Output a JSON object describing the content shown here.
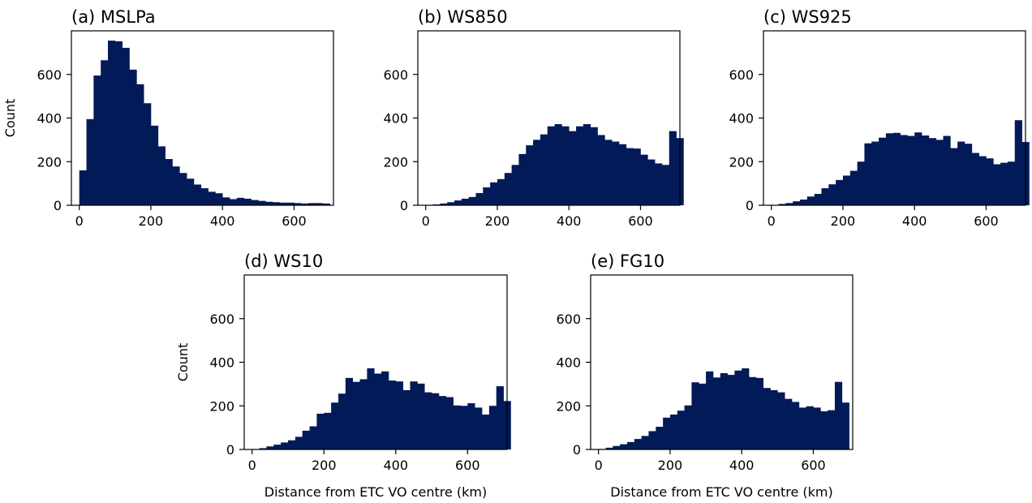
{
  "chart_data": [
    {
      "type": "bar",
      "title": "(a) MSLPa",
      "xlabel": "",
      "ylabel": "Count",
      "xlim": [
        -22,
        710
      ],
      "ylim": [
        0,
        800
      ],
      "xticks": [
        0,
        200,
        400,
        600
      ],
      "yticks": [
        0,
        200,
        400,
        600
      ],
      "grid": false,
      "bin_width": 20,
      "bin_start": 0,
      "color": "#021a57",
      "values": [
        160,
        395,
        595,
        665,
        755,
        752,
        722,
        622,
        555,
        468,
        365,
        270,
        212,
        178,
        148,
        122,
        95,
        78,
        62,
        55,
        36,
        28,
        34,
        30,
        24,
        20,
        16,
        14,
        12,
        12,
        10,
        8,
        10,
        10,
        8
      ]
    },
    {
      "type": "bar",
      "title": "(b) WS850",
      "xlabel": "",
      "ylabel": "",
      "xlim": [
        -22,
        710
      ],
      "ylim": [
        0,
        800
      ],
      "xticks": [
        0,
        200,
        400,
        600
      ],
      "yticks": [
        0,
        200,
        400,
        600
      ],
      "grid": false,
      "bin_width": 20,
      "bin_start": 0,
      "color": "#021a57",
      "values": [
        2,
        4,
        8,
        14,
        22,
        30,
        38,
        56,
        82,
        105,
        120,
        148,
        185,
        235,
        275,
        300,
        325,
        362,
        372,
        362,
        340,
        362,
        372,
        358,
        322,
        300,
        292,
        280,
        262,
        260,
        232,
        210,
        192,
        185,
        340,
        308
      ]
    },
    {
      "type": "bar",
      "title": "(c) WS925",
      "xlabel": "",
      "ylabel": "",
      "xlim": [
        -22,
        710
      ],
      "ylim": [
        0,
        800
      ],
      "xticks": [
        0,
        200,
        400,
        600
      ],
      "yticks": [
        0,
        200,
        400,
        600
      ],
      "grid": false,
      "bin_width": 20,
      "bin_start": 0,
      "color": "#021a57",
      "values": [
        2,
        6,
        10,
        18,
        26,
        40,
        52,
        78,
        96,
        116,
        136,
        158,
        200,
        284,
        292,
        310,
        330,
        332,
        322,
        318,
        334,
        320,
        308,
        300,
        318,
        262,
        292,
        282,
        240,
        225,
        215,
        188,
        195,
        200,
        390,
        290
      ]
    },
    {
      "type": "bar",
      "title": "(d) WS10",
      "xlabel": "Distance from ETC VO centre (km)",
      "ylabel": "Count",
      "xlim": [
        -22,
        710
      ],
      "ylim": [
        0,
        800
      ],
      "xticks": [
        0,
        200,
        400,
        600
      ],
      "yticks": [
        0,
        200,
        400,
        600
      ],
      "grid": false,
      "bin_width": 20,
      "bin_start": 0,
      "color": "#021a57",
      "values": [
        2,
        6,
        14,
        22,
        32,
        42,
        58,
        86,
        106,
        164,
        168,
        215,
        256,
        328,
        310,
        322,
        372,
        348,
        358,
        316,
        312,
        272,
        312,
        302,
        262,
        258,
        245,
        240,
        202,
        200,
        212,
        192,
        160,
        200,
        290,
        222
      ]
    },
    {
      "type": "bar",
      "title": "(e) FG10",
      "xlabel": "Distance from ETC VO centre (km)",
      "ylabel": "",
      "xlim": [
        -22,
        710
      ],
      "ylim": [
        0,
        800
      ],
      "xticks": [
        0,
        200,
        400,
        600
      ],
      "yticks": [
        0,
        200,
        400,
        600
      ],
      "grid": false,
      "bin_width": 20,
      "bin_start": 0,
      "color": "#021a57",
      "values": [
        2,
        8,
        16,
        24,
        34,
        48,
        62,
        84,
        104,
        146,
        160,
        178,
        202,
        308,
        302,
        358,
        330,
        350,
        342,
        362,
        372,
        332,
        328,
        282,
        272,
        262,
        232,
        218,
        192,
        198,
        192,
        175,
        180,
        310,
        215
      ]
    }
  ]
}
